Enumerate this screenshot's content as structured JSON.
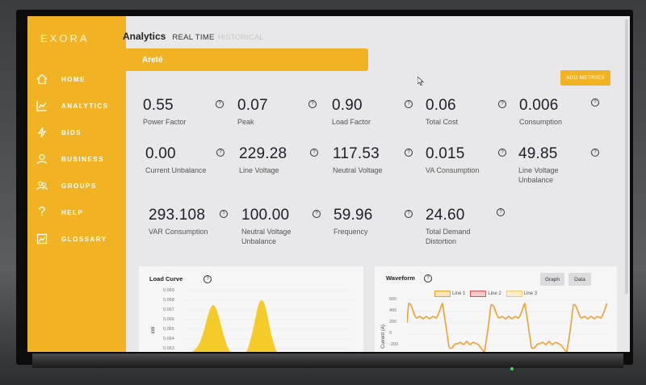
{
  "app": {
    "logo": "EXORA"
  },
  "sidebar": {
    "items": [
      {
        "label": "HOME",
        "icon": "home-icon"
      },
      {
        "label": "ANALYTICS",
        "icon": "analytics-icon"
      },
      {
        "label": "BIDS",
        "icon": "bolt-icon"
      },
      {
        "label": "BUSINESS",
        "icon": "user-icon"
      },
      {
        "label": "GROUPS",
        "icon": "groups-icon"
      },
      {
        "label": "HELP",
        "icon": "help-icon"
      },
      {
        "label": "GLOSSARY",
        "icon": "glossary-icon"
      }
    ]
  },
  "header": {
    "title": "Analytics",
    "tab_realtime": "REAL TIME",
    "tab_historical": "HISTORICAL"
  },
  "site": {
    "name": "Areté"
  },
  "toolbar": {
    "add_metrics": "ADD METRICS"
  },
  "metrics": [
    {
      "value": "0.55",
      "label": "Power Factor"
    },
    {
      "value": "0.07",
      "label": "Peak"
    },
    {
      "value": "0.90",
      "label": "Load Factor"
    },
    {
      "value": "0.06",
      "label": "Total Cost"
    },
    {
      "value": "0.006",
      "label": "Consumption"
    },
    {
      "value": "0.00",
      "label": "Current Unbalance"
    },
    {
      "value": "229.28",
      "label": "Line Voltage"
    },
    {
      "value": "117.53",
      "label": "Neutral Voltage"
    },
    {
      "value": "0.015",
      "label": "VA Consumption"
    },
    {
      "value": "49.85",
      "label": "Line Voltage Unbalance"
    },
    {
      "value": "293.108",
      "label": "VAR Consumption"
    },
    {
      "value": "100.00",
      "label": "Neutral Voltage Unbalance"
    },
    {
      "value": "59.96",
      "label": "Frequency"
    },
    {
      "value": "24.60",
      "label": "Total Demand Distortion"
    }
  ],
  "help_glyph": "?",
  "load_curve": {
    "title": "Load Curve",
    "ylabel": "kW",
    "ticks": [
      "0.069",
      "0.068",
      "0.067",
      "0.066",
      "0.065",
      "0.064",
      "0.063",
      "0.062"
    ]
  },
  "waveform": {
    "title": "Waveform",
    "graph_btn": "Graph",
    "data_btn": "Data",
    "legend": [
      "Line 1",
      "Line 2",
      "Line 3"
    ],
    "legend_colors": [
      "#f0a030",
      "#e05050",
      "#f3c870"
    ],
    "ylabel": "Current (A)",
    "ticks": [
      "600",
      "400",
      "200",
      "0",
      "-200"
    ]
  },
  "colors": {
    "accent": "#f1b323",
    "curve": "#f5cb2a",
    "wave": "#f0a030"
  }
}
